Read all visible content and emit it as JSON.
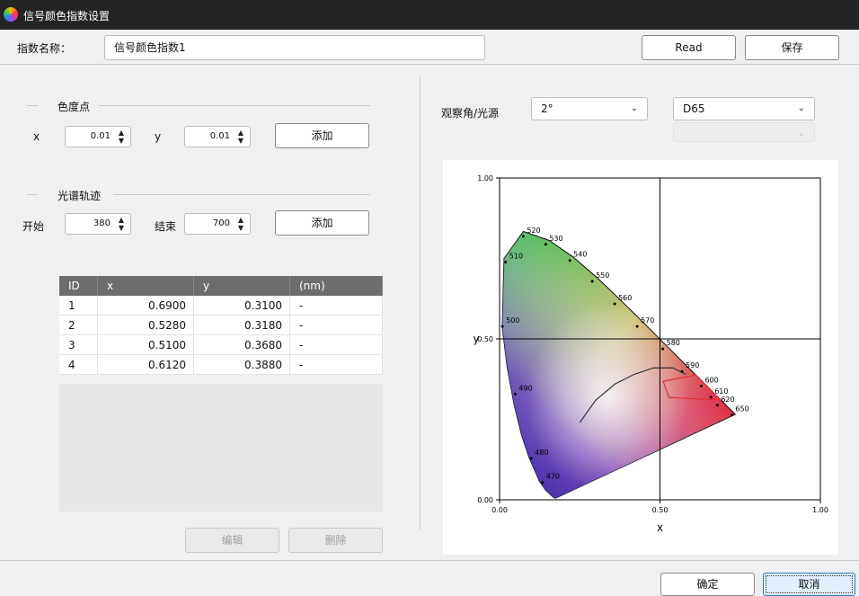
{
  "window": {
    "title": "信号颜色指数设置",
    "icon": "color-wheel-icon"
  },
  "header": {
    "name_label": "指数名称：",
    "name_value": "信号颜色指数1",
    "read_label": "Read",
    "save_label": "保存"
  },
  "chromaticity": {
    "group_label": "色度点",
    "x_label": "x",
    "x_value": "0.01",
    "y_label": "y",
    "y_value": "0.01",
    "add_label": "添加"
  },
  "spectral": {
    "group_label": "光谱轨迹",
    "start_label": "开始",
    "start_value": "380",
    "end_label": "结束",
    "end_value": "700",
    "add_label": "添加"
  },
  "points_table": {
    "headers": [
      "ID",
      "x",
      "y",
      "(nm)"
    ],
    "rows": [
      [
        "1",
        "0.6900",
        "0.3100",
        "-"
      ],
      [
        "2",
        "0.5280",
        "0.3180",
        "-"
      ],
      [
        "3",
        "0.5100",
        "0.3680",
        "-"
      ],
      [
        "4",
        "0.6120",
        "0.3880",
        "-"
      ]
    ]
  },
  "table_actions": {
    "edit_label": "编辑",
    "delete_label": "删除"
  },
  "observer": {
    "label": "观察角/光源",
    "angle": "2°",
    "illuminant": "D65"
  },
  "chart_data": {
    "type": "scatter",
    "xlabel": "x",
    "ylabel": "y",
    "xlim": [
      0,
      1
    ],
    "ylim": [
      0,
      1
    ],
    "x_ticks": [
      "0.00",
      "0.50",
      "1.00"
    ],
    "y_ticks": [
      "0.00",
      "0.50",
      "1.00"
    ],
    "crosshair": [
      0.5,
      0.5
    ],
    "wavelength_labels": [
      {
        "nm": "520",
        "x": 0.085,
        "y": 0.83
      },
      {
        "nm": "530",
        "x": 0.155,
        "y": 0.805
      },
      {
        "nm": "540",
        "x": 0.23,
        "y": 0.755
      },
      {
        "nm": "550",
        "x": 0.3,
        "y": 0.69
      },
      {
        "nm": "560",
        "x": 0.37,
        "y": 0.62
      },
      {
        "nm": "570",
        "x": 0.44,
        "y": 0.55
      },
      {
        "nm": "580",
        "x": 0.52,
        "y": 0.48
      },
      {
        "nm": "590",
        "x": 0.58,
        "y": 0.41
      },
      {
        "nm": "600",
        "x": 0.64,
        "y": 0.365
      },
      {
        "nm": "610",
        "x": 0.67,
        "y": 0.33
      },
      {
        "nm": "620",
        "x": 0.69,
        "y": 0.305
      },
      {
        "nm": "650",
        "x": 0.735,
        "y": 0.275
      },
      {
        "nm": "510",
        "x": 0.03,
        "y": 0.75
      },
      {
        "nm": "500",
        "x": 0.02,
        "y": 0.55
      },
      {
        "nm": "490",
        "x": 0.06,
        "y": 0.34
      },
      {
        "nm": "480",
        "x": 0.11,
        "y": 0.14
      },
      {
        "nm": "470",
        "x": 0.145,
        "y": 0.065
      }
    ],
    "locus": [
      [
        0.1741,
        0.005
      ],
      [
        0.1738,
        0.0049
      ],
      [
        0.1666,
        0.0089
      ],
      [
        0.144,
        0.0297
      ],
      [
        0.1241,
        0.0578
      ],
      [
        0.0913,
        0.1327
      ],
      [
        0.0687,
        0.2007
      ],
      [
        0.0454,
        0.295
      ],
      [
        0.0235,
        0.4127
      ],
      [
        0.0082,
        0.5384
      ],
      [
        0.0139,
        0.7502
      ],
      [
        0.0743,
        0.8338
      ],
      [
        0.1547,
        0.8059
      ],
      [
        0.2296,
        0.7543
      ],
      [
        0.3016,
        0.6923
      ],
      [
        0.3731,
        0.6245
      ],
      [
        0.4441,
        0.5547
      ],
      [
        0.5125,
        0.4866
      ],
      [
        0.5752,
        0.4242
      ],
      [
        0.627,
        0.3725
      ],
      [
        0.6658,
        0.334
      ],
      [
        0.6915,
        0.3083
      ],
      [
        0.7079,
        0.292
      ],
      [
        0.7347,
        0.2653
      ]
    ],
    "planckian": [
      [
        0.25,
        0.24
      ],
      [
        0.3,
        0.31
      ],
      [
        0.36,
        0.36
      ],
      [
        0.42,
        0.39
      ],
      [
        0.48,
        0.41
      ],
      [
        0.54,
        0.41
      ],
      [
        0.58,
        0.39
      ]
    ],
    "polygon": [
      [
        0.69,
        0.31
      ],
      [
        0.528,
        0.318
      ],
      [
        0.51,
        0.368
      ],
      [
        0.612,
        0.388
      ]
    ]
  }
}
